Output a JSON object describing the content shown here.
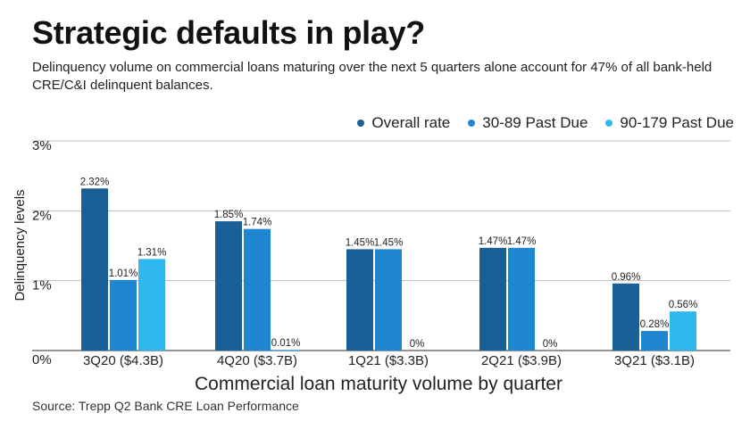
{
  "title": "Strategic defaults in play?",
  "subtitle": "Delinquency volume on commercial loans maturing over the next 5 quarters alone account for 47% of all bank-held CRE/C&I delinquent balances.",
  "source": "Source: Trepp Q2 Bank CRE Loan Performance",
  "chart_data": {
    "type": "bar",
    "title": "Strategic defaults in play?",
    "xlabel": "Commercial loan maturity volume by quarter",
    "ylabel": "Delinquency levels",
    "ylim": [
      0,
      3
    ],
    "yticks": [
      "0%",
      "1%",
      "2%",
      "3%"
    ],
    "grid": true,
    "legend_position": "top-right",
    "categories": [
      "3Q20 ($4.3B)",
      "4Q20 ($3.7B)",
      "1Q21 ($3.3B)",
      "2Q21 ($3.9B)",
      "3Q21 ($3.1B)"
    ],
    "series": [
      {
        "name": "Overall rate",
        "color": "#1a5f96",
        "values": [
          2.32,
          1.85,
          1.45,
          1.47,
          0.96
        ],
        "labels": [
          "2.32%",
          "1.85%",
          "1.45%",
          "1.47%",
          "0.96%"
        ]
      },
      {
        "name": "30-89 Past Due",
        "color": "#1f86d1",
        "values": [
          1.01,
          1.74,
          1.45,
          1.47,
          0.28
        ],
        "labels": [
          "1.01%",
          "1.74%",
          "1.45%",
          "1.47%",
          "0.28%"
        ]
      },
      {
        "name": "90-179 Past Due",
        "color": "#2fb8ef",
        "values": [
          1.31,
          0.01,
          0,
          0,
          0.56
        ],
        "labels": [
          "1.31%",
          "0.01%",
          "0%",
          "0%",
          "0.56%"
        ]
      }
    ]
  }
}
